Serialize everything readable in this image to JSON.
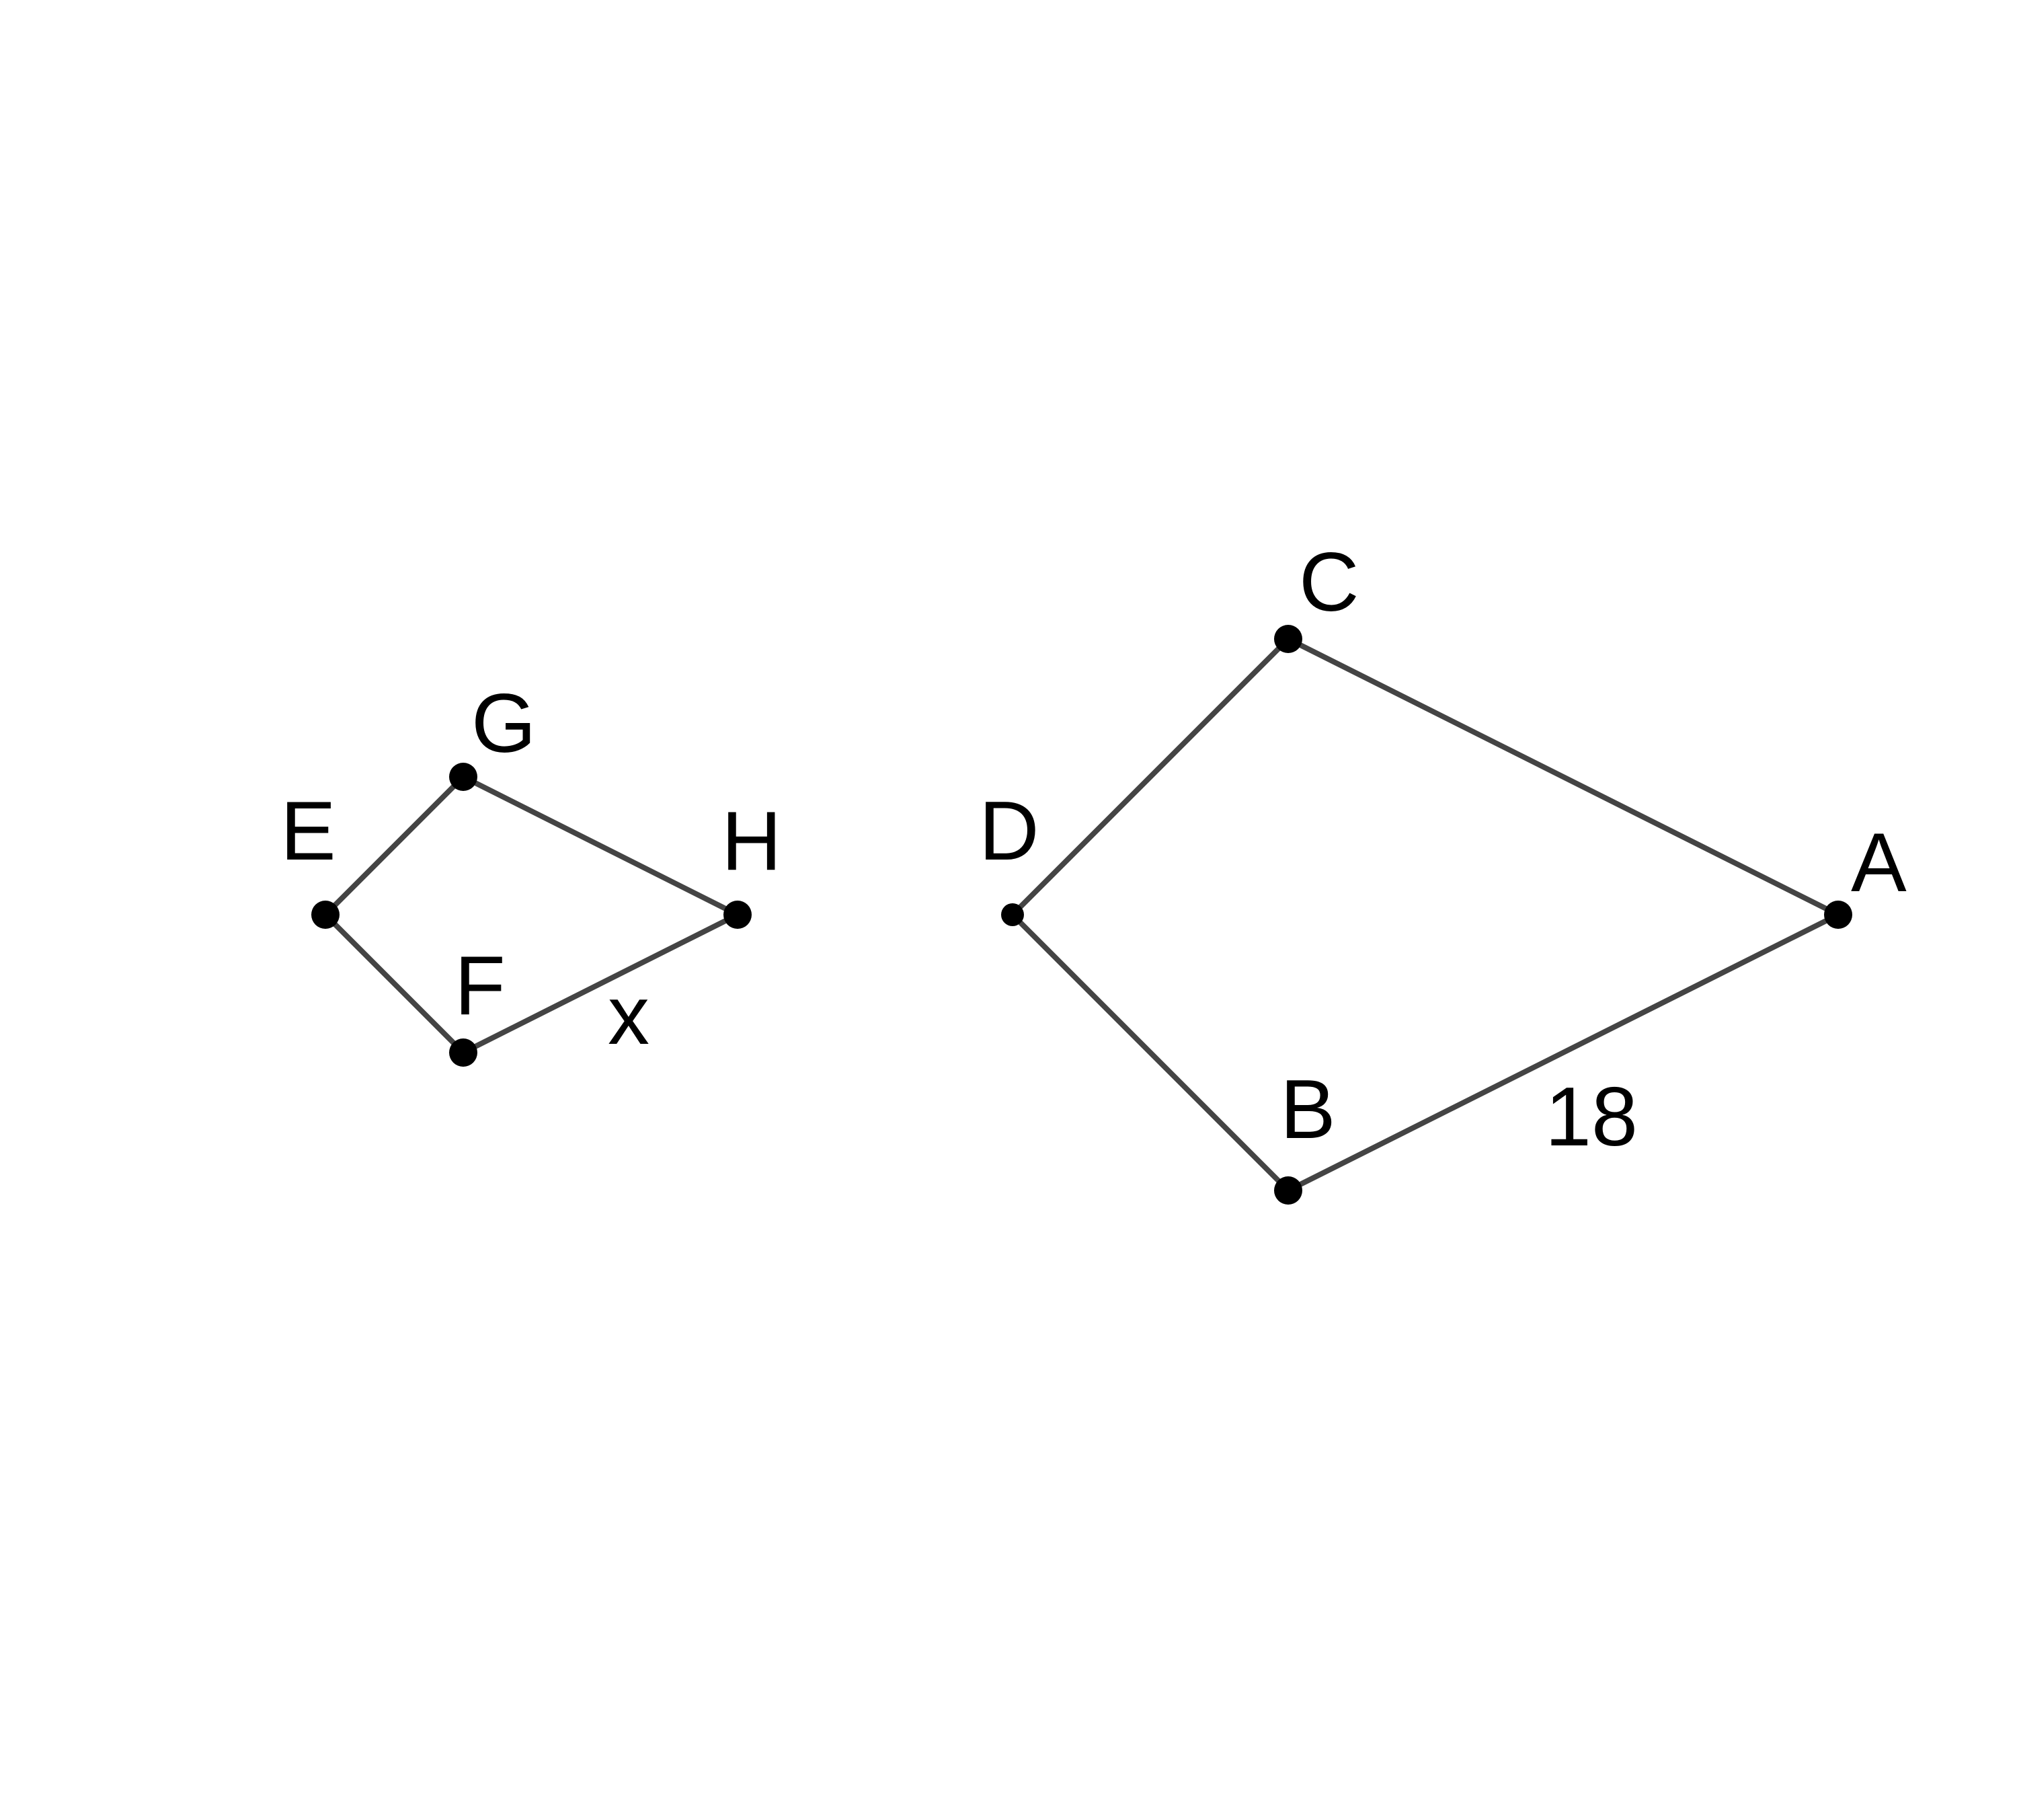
{
  "figures": [
    {
      "name": "small-quadrilateral",
      "vertices": [
        "E",
        "F",
        "H",
        "G"
      ],
      "side_labels": [
        {
          "side": "FH",
          "text": "x"
        }
      ]
    },
    {
      "name": "large-quadrilateral",
      "vertices": [
        "D",
        "B",
        "A",
        "C"
      ],
      "side_labels": [
        {
          "side": "BA",
          "text": "18"
        }
      ]
    }
  ],
  "labels": {
    "E": "E",
    "F": "F",
    "G": "G",
    "H": "H",
    "A": "A",
    "B": "B",
    "C": "C",
    "D": "D",
    "side_FH": "x",
    "side_BA": "18"
  },
  "colors": {
    "edge": "#444444",
    "vertex": "#000000",
    "text": "#000000",
    "background": "#ffffff"
  }
}
